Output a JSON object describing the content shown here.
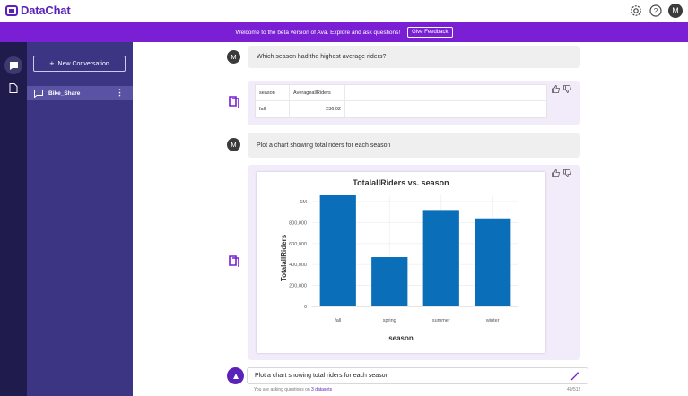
{
  "app": {
    "name": "DataChat"
  },
  "topbar": {
    "avatar_initial": "M",
    "icons": [
      "settings-icon",
      "help-icon"
    ]
  },
  "banner": {
    "text": "Welcome to the beta version of Ava. Explore and ask questions!",
    "button_label": "Give Feedback"
  },
  "sidebar": {
    "new_conversation_label": "New Conversation",
    "conversations": [
      {
        "label": "Bike_Share"
      }
    ]
  },
  "chat": {
    "user_initial": "M",
    "messages": [
      {
        "role": "user",
        "text": "Which season had the highest average riders?"
      },
      {
        "role": "bot",
        "table": {
          "headers": [
            "season",
            "AverageallRiders"
          ],
          "rows": [
            [
              "fall",
              "236.02"
            ]
          ]
        }
      },
      {
        "role": "user",
        "text": "Plot a chart showing total riders for each season"
      },
      {
        "role": "bot",
        "chart": true
      }
    ]
  },
  "chart_data": {
    "type": "bar",
    "title": "TotalallRiders vs. season",
    "xlabel": "season",
    "ylabel": "TotalallRiders",
    "categories": [
      "fall",
      "spring",
      "summer",
      "winter"
    ],
    "values": [
      1060000,
      470000,
      920000,
      840000
    ],
    "ylim": [
      0,
      1060000
    ],
    "yticks": [
      0,
      200000,
      400000,
      600000,
      800000,
      1000000
    ],
    "ytick_labels": [
      "0",
      "200,000",
      "400,000",
      "600,000",
      "800,000",
      "1M"
    ],
    "grid": true,
    "bar_color": "#0a6fb8"
  },
  "composer": {
    "value": "Plot a chart showing total riders for each season",
    "hint_prefix": "You are asking questions on ",
    "hint_link": "3 datasets",
    "counter": "49/512"
  },
  "colors": {
    "brand": "#5a22b8",
    "banner": "#7a1fd4",
    "rail": "#1f1b4d",
    "sidebar": "#3c3584",
    "bot_bubble": "#f1ebfa"
  }
}
